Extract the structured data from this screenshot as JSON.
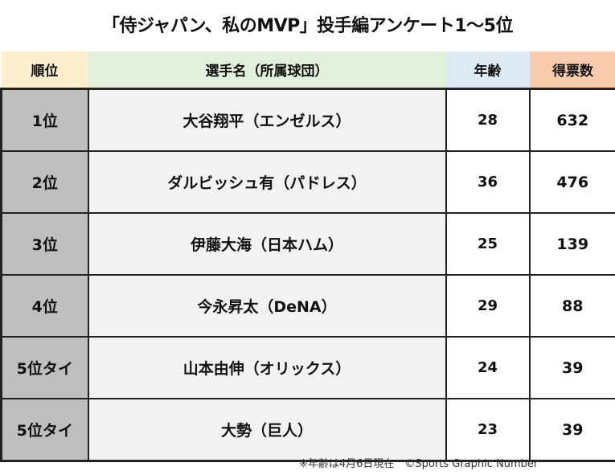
{
  "title": "「侍ジャパン、私のMVP」投手編アンケート1〜5位",
  "colors": {
    "rank_header": "#fdefcc",
    "name_header": "#e2efda",
    "age_header": "#ddebf7",
    "votes_header": "#f8cbad",
    "rank_cell": "#bfbfbf",
    "name_cell": "#f2f2f2"
  },
  "chart_data": {
    "type": "table",
    "columns": [
      "順位",
      "選手名（所属球団）",
      "年齢",
      "得票数"
    ],
    "rows": [
      [
        "1位",
        "大谷翔平（エンゼルス）",
        "28",
        "632"
      ],
      [
        "2位",
        "ダルビッシュ有（パドレス）",
        "36",
        "476"
      ],
      [
        "3位",
        "伊藤大海（日本ハム）",
        "25",
        "139"
      ],
      [
        "4位",
        "今永昇太（DeNA）",
        "29",
        "88"
      ],
      [
        "5位タイ",
        "山本由伸（オリックス）",
        "24",
        "39"
      ],
      [
        "5位タイ",
        "大勢（巨人）",
        "23",
        "39"
      ]
    ]
  },
  "footer": "※年齢は4月6日現在　©Sports Graphic Number"
}
